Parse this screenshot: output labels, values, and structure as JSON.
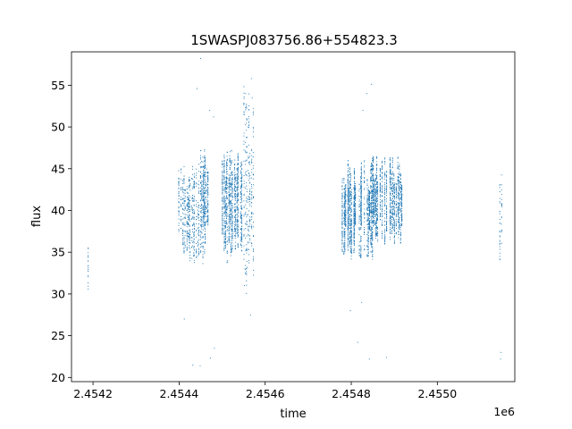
{
  "chart_data": {
    "type": "scatter",
    "title": "1SWASPJ083756.86+554823.3",
    "xlabel": "time",
    "ylabel": "flux",
    "x_offset_label": "1e6",
    "xlim": [
      2454150,
      2454180
    ],
    "ylim": [
      19.5,
      59
    ],
    "x_ticks": [
      2454200,
      2454400,
      2454600,
      2454800,
      2455000
    ],
    "x_tick_labels": [
      "2.4542",
      "2.4544",
      "2.4546",
      "2.4548",
      "2.4550"
    ],
    "y_ticks": [
      20,
      25,
      30,
      35,
      40,
      45,
      50,
      55
    ],
    "y_tick_labels": [
      "20",
      "25",
      "30",
      "35",
      "40",
      "45",
      "50",
      "55"
    ],
    "grid": false,
    "legend": "none",
    "marker_color": "#1f77b4",
    "series": [
      {
        "clusters": [
          {
            "x_range": [
              2454188,
              2454189
            ],
            "y_range": [
              28,
              36
            ],
            "density": 0.4
          },
          {
            "x_range": [
              2454399,
              2454449
            ],
            "y_range": [
              33,
              47
            ],
            "density": 0.6
          },
          {
            "x_range": [
              2454449,
              2454470
            ],
            "y_range": [
              33.5,
              48
            ],
            "density": 1.0
          },
          {
            "x_range": [
              2454500,
              2454547
            ],
            "y_range": [
              33.5,
              47.5
            ],
            "density": 1.4
          },
          {
            "x_range": [
              2454548,
              2454573
            ],
            "y_range": [
              28,
              56
            ],
            "density": 0.6
          },
          {
            "x_range": [
              2454779,
              2454865
            ],
            "y_range": [
              34,
              46.5
            ],
            "density": 1.4
          },
          {
            "x_range": [
              2454866,
              2454918
            ],
            "y_range": [
              35.5,
              47
            ],
            "density": 1.1
          },
          {
            "x_range": [
              2455145,
              2455150
            ],
            "y_range": [
              33.5,
              45.5
            ],
            "density": 0.5
          }
        ],
        "outliers": [
          [
            2454450,
            58.2
          ],
          [
            2454442,
            54.6
          ],
          [
            2454471,
            52.0
          ],
          [
            2454480,
            51.2
          ],
          [
            2454568,
            55.8
          ],
          [
            2454570,
            53.5
          ],
          [
            2454553,
            33.0
          ],
          [
            2454473,
            22.3
          ],
          [
            2454482,
            23.5
          ],
          [
            2454449,
            21.4
          ],
          [
            2454432,
            21.5
          ],
          [
            2454412,
            27.0
          ],
          [
            2454836,
            54.0
          ],
          [
            2454847,
            55.1
          ],
          [
            2454827,
            52.0
          ],
          [
            2454815,
            24.2
          ],
          [
            2454842,
            22.2
          ],
          [
            2454882,
            22.4
          ],
          [
            2454824,
            29.0
          ],
          [
            2454798,
            28.0
          ],
          [
            2455148,
            23.0
          ],
          [
            2455147,
            22.2
          ],
          [
            2454552,
            31.0
          ],
          [
            2454566,
            27.5
          ]
        ]
      }
    ]
  }
}
